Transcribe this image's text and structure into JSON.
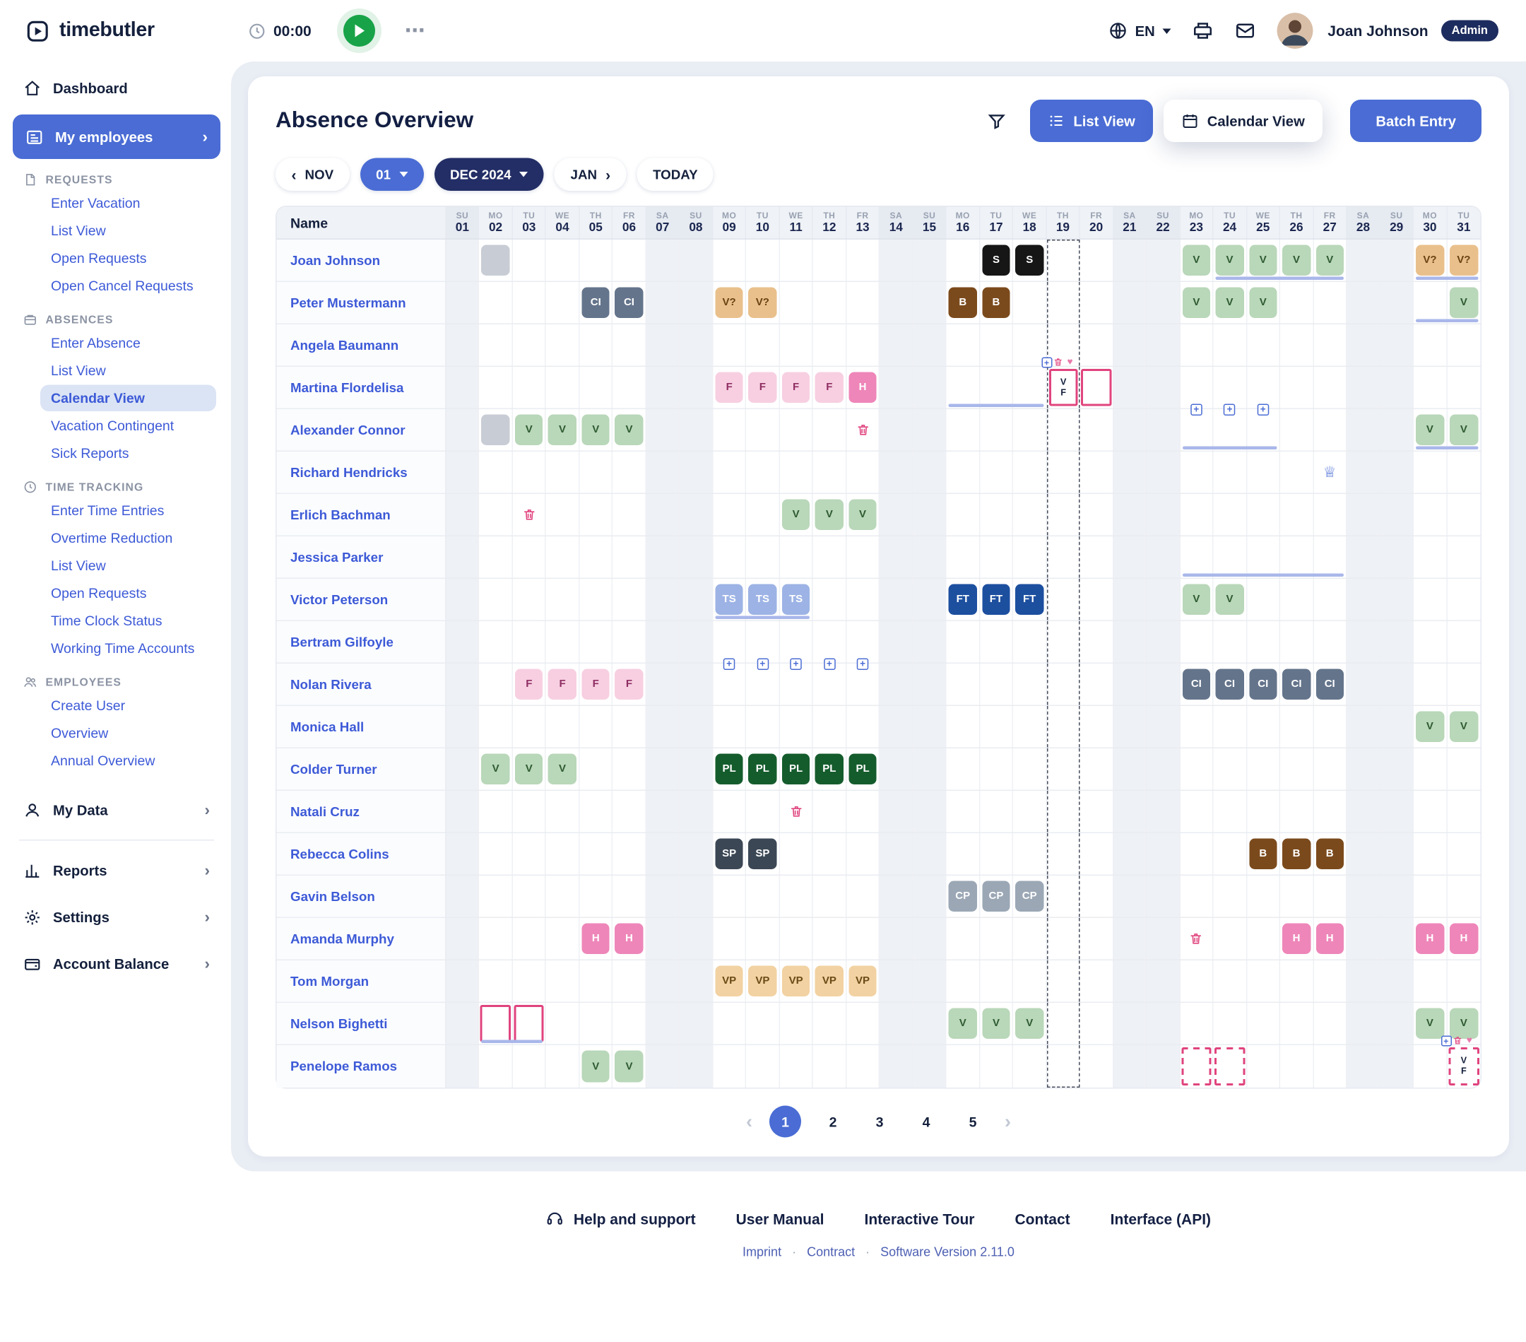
{
  "topbar": {
    "brand": "timebutler",
    "timer": "00:00",
    "ellipsis": "⋯",
    "language": "EN",
    "user_name": "Joan Johnson",
    "user_role": "Admin"
  },
  "sidebar": {
    "dashboard": "Dashboard",
    "my_employees": "My employees",
    "sections": [
      {
        "label": "REQUESTS",
        "items": [
          "Enter Vacation",
          "List View",
          "Open Requests",
          "Open Cancel Requests"
        ]
      },
      {
        "label": "ABSENCES",
        "items": [
          "Enter Absence",
          "List View",
          "Calendar View",
          "Vacation Contingent",
          "Sick Reports"
        ]
      },
      {
        "label": "TIME TRACKING",
        "items": [
          "Enter Time Entries",
          "Overtime Reduction",
          "List View",
          "Open Requests",
          "Time Clock Status",
          "Working Time Accounts"
        ]
      },
      {
        "label": "EMPLOYEES",
        "items": [
          "Create User",
          "Overview",
          "Annual Overview"
        ]
      }
    ],
    "active_item": "Calendar View",
    "bottom_items": [
      "My Data",
      "Reports",
      "Settings",
      "Account Balance"
    ]
  },
  "main": {
    "title": "Absence Overview",
    "view_buttons": {
      "list": "List View",
      "calendar": "Calendar View",
      "batch": "Batch Entry"
    },
    "date_nav": {
      "prev": "NOV",
      "day": "01",
      "month": "DEC 2024",
      "next": "JAN",
      "today": "TODAY"
    },
    "grid": {
      "name_header": "Name",
      "selected_day": 19,
      "palette": {
        "v": {
          "bg": "#b9d7b9",
          "fg": "#2f5b31"
        },
        "vq": {
          "bg": "#e9c08c",
          "fg": "#6a4314"
        },
        "s": {
          "bg": "#161616",
          "fg": "#ffffff"
        },
        "ci": {
          "bg": "#64748b",
          "fg": "#ffffff"
        },
        "b": {
          "bg": "#7b4a1c",
          "fg": "#ffffff"
        },
        "f": {
          "bg": "#f7cfe1",
          "fg": "#8f2d62"
        },
        "h": {
          "bg": "#ee86b9",
          "fg": "#ffffff"
        },
        "ts": {
          "bg": "#9db3e5",
          "fg": "#ffffff"
        },
        "ft": {
          "bg": "#1d4f9f",
          "fg": "#ffffff"
        },
        "pl": {
          "bg": "#155c2d",
          "fg": "#ffffff"
        },
        "sp": {
          "bg": "#3b4754",
          "fg": "#ffffff"
        },
        "cp": {
          "bg": "#9ba7b5",
          "fg": "#ffffff"
        },
        "vp": {
          "bg": "#f2d2a2",
          "fg": "#6a4a15"
        },
        "block": {
          "bg": "#c8ccd5",
          "fg": "#c8ccd5"
        }
      },
      "days": [
        {
          "dow": "SU",
          "num": "01"
        },
        {
          "dow": "MO",
          "num": "02"
        },
        {
          "dow": "TU",
          "num": "03"
        },
        {
          "dow": "WE",
          "num": "04"
        },
        {
          "dow": "TH",
          "num": "05"
        },
        {
          "dow": "FR",
          "num": "06"
        },
        {
          "dow": "SA",
          "num": "07"
        },
        {
          "dow": "SU",
          "num": "08"
        },
        {
          "dow": "MO",
          "num": "09"
        },
        {
          "dow": "TU",
          "num": "10"
        },
        {
          "dow": "WE",
          "num": "11"
        },
        {
          "dow": "TH",
          "num": "12"
        },
        {
          "dow": "FR",
          "num": "13"
        },
        {
          "dow": "SA",
          "num": "14"
        },
        {
          "dow": "SU",
          "num": "15"
        },
        {
          "dow": "MO",
          "num": "16"
        },
        {
          "dow": "TU",
          "num": "17"
        },
        {
          "dow": "WE",
          "num": "18"
        },
        {
          "dow": "TH",
          "num": "19"
        },
        {
          "dow": "FR",
          "num": "20"
        },
        {
          "dow": "SA",
          "num": "21"
        },
        {
          "dow": "SU",
          "num": "22"
        },
        {
          "dow": "MO",
          "num": "23"
        },
        {
          "dow": "TU",
          "num": "24"
        },
        {
          "dow": "WE",
          "num": "25"
        },
        {
          "dow": "TH",
          "num": "26"
        },
        {
          "dow": "FR",
          "num": "27"
        },
        {
          "dow": "SA",
          "num": "28"
        },
        {
          "dow": "SU",
          "num": "29"
        },
        {
          "dow": "MO",
          "num": "30"
        },
        {
          "dow": "TU",
          "num": "31"
        }
      ],
      "rows": [
        {
          "name": "Joan Johnson",
          "cells": [
            {
              "d": 2,
              "t": "block"
            },
            {
              "d": 17,
              "t": "s",
              "c": "S"
            },
            {
              "d": 18,
              "t": "s",
              "c": "S"
            },
            {
              "d": 23,
              "t": "v",
              "c": "V"
            },
            {
              "d": 24,
              "t": "v",
              "c": "V"
            },
            {
              "d": 25,
              "t": "v",
              "c": "V"
            },
            {
              "d": 26,
              "t": "v",
              "c": "V"
            },
            {
              "d": 27,
              "t": "v",
              "c": "V"
            },
            {
              "d": 30,
              "t": "vq",
              "c": "V?"
            },
            {
              "d": 31,
              "t": "vq",
              "c": "V?"
            }
          ],
          "bars": [
            [
              24,
              27
            ],
            [
              30,
              31
            ]
          ]
        },
        {
          "name": "Peter Mustermann",
          "cells": [
            {
              "d": 5,
              "t": "ci",
              "c": "CI"
            },
            {
              "d": 6,
              "t": "ci",
              "c": "CI"
            },
            {
              "d": 9,
              "t": "vq",
              "c": "V?"
            },
            {
              "d": 10,
              "t": "vq",
              "c": "V?"
            },
            {
              "d": 16,
              "t": "b",
              "c": "B"
            },
            {
              "d": 17,
              "t": "b",
              "c": "B"
            },
            {
              "d": 23,
              "t": "v",
              "c": "V"
            },
            {
              "d": 24,
              "t": "v",
              "c": "V"
            },
            {
              "d": 25,
              "t": "v",
              "c": "V"
            },
            {
              "d": 31,
              "t": "v",
              "c": "V"
            }
          ],
          "bars": [
            [
              30,
              31
            ]
          ]
        },
        {
          "name": "Angela Baumann",
          "cells": [],
          "bars": []
        },
        {
          "name": "Martina Flordelisa",
          "cells": [
            {
              "d": 9,
              "t": "f",
              "c": "F"
            },
            {
              "d": 10,
              "t": "f",
              "c": "F"
            },
            {
              "d": 11,
              "t": "f",
              "c": "F"
            },
            {
              "d": 12,
              "t": "f",
              "c": "F"
            },
            {
              "d": 13,
              "t": "h",
              "c": "H"
            },
            {
              "d": 19,
              "t": "vf",
              "c": "V F"
            },
            {
              "d": 20,
              "t": "sel"
            }
          ],
          "bars": [
            [
              16,
              18
            ]
          ]
        },
        {
          "name": "Alexander Connor",
          "cells": [
            {
              "d": 2,
              "t": "block"
            },
            {
              "d": 3,
              "t": "v",
              "c": "V"
            },
            {
              "d": 4,
              "t": "v",
              "c": "V"
            },
            {
              "d": 5,
              "t": "v",
              "c": "V"
            },
            {
              "d": 6,
              "t": "v",
              "c": "V"
            },
            {
              "d": 13,
              "t": "trash"
            },
            {
              "d": 23,
              "t": "plus"
            },
            {
              "d": 24,
              "t": "plus"
            },
            {
              "d": 25,
              "t": "plus"
            },
            {
              "d": 30,
              "t": "v",
              "c": "V"
            },
            {
              "d": 31,
              "t": "v",
              "c": "V"
            }
          ],
          "bars": [
            [
              23,
              25
            ],
            [
              30,
              31
            ]
          ]
        },
        {
          "name": "Richard Hendricks",
          "cells": [
            {
              "d": 27,
              "t": "crown"
            }
          ],
          "bars": []
        },
        {
          "name": "Erlich Bachman",
          "cells": [
            {
              "d": 3,
              "t": "trash"
            },
            {
              "d": 11,
              "t": "v",
              "c": "V"
            },
            {
              "d": 12,
              "t": "v",
              "c": "V"
            },
            {
              "d": 13,
              "t": "v",
              "c": "V"
            }
          ],
          "bars": []
        },
        {
          "name": "Jessica Parker",
          "cells": [],
          "bars": [
            [
              23,
              27
            ]
          ]
        },
        {
          "name": "Victor Peterson",
          "cells": [
            {
              "d": 9,
              "t": "ts",
              "c": "TS"
            },
            {
              "d": 10,
              "t": "ts",
              "c": "TS"
            },
            {
              "d": 11,
              "t": "ts",
              "c": "TS"
            },
            {
              "d": 16,
              "t": "ft",
              "c": "FT"
            },
            {
              "d": 17,
              "t": "ft",
              "c": "FT"
            },
            {
              "d": 18,
              "t": "ft",
              "c": "FT"
            },
            {
              "d": 23,
              "t": "v",
              "c": "V"
            },
            {
              "d": 24,
              "t": "v",
              "c": "V"
            }
          ],
          "bars": [
            [
              9,
              11
            ]
          ]
        },
        {
          "name": "Bertram Gilfoyle",
          "cells": [],
          "bars": []
        },
        {
          "name": "Nolan Rivera",
          "cells": [
            {
              "d": 3,
              "t": "f",
              "c": "F"
            },
            {
              "d": 4,
              "t": "f",
              "c": "F"
            },
            {
              "d": 5,
              "t": "f",
              "c": "F"
            },
            {
              "d": 6,
              "t": "f",
              "c": "F"
            },
            {
              "d": 9,
              "t": "plus"
            },
            {
              "d": 10,
              "t": "plus"
            },
            {
              "d": 11,
              "t": "plus"
            },
            {
              "d": 12,
              "t": "plus"
            },
            {
              "d": 13,
              "t": "plus"
            },
            {
              "d": 23,
              "t": "ci",
              "c": "CI"
            },
            {
              "d": 24,
              "t": "ci",
              "c": "CI"
            },
            {
              "d": 25,
              "t": "ci",
              "c": "CI"
            },
            {
              "d": 26,
              "t": "ci",
              "c": "CI"
            },
            {
              "d": 27,
              "t": "ci",
              "c": "CI"
            }
          ],
          "bars": []
        },
        {
          "name": "Monica Hall",
          "cells": [
            {
              "d": 30,
              "t": "v",
              "c": "V"
            },
            {
              "d": 31,
              "t": "v",
              "c": "V"
            }
          ],
          "bars": []
        },
        {
          "name": "Colder Turner",
          "cells": [
            {
              "d": 2,
              "t": "v",
              "c": "V"
            },
            {
              "d": 3,
              "t": "v",
              "c": "V"
            },
            {
              "d": 4,
              "t": "v",
              "c": "V"
            },
            {
              "d": 9,
              "t": "pl",
              "c": "PL"
            },
            {
              "d": 10,
              "t": "pl",
              "c": "PL"
            },
            {
              "d": 11,
              "t": "pl",
              "c": "PL"
            },
            {
              "d": 12,
              "t": "pl",
              "c": "PL"
            },
            {
              "d": 13,
              "t": "pl",
              "c": "PL"
            }
          ],
          "bars": []
        },
        {
          "name": "Natali Cruz",
          "cells": [
            {
              "d": 11,
              "t": "trash"
            }
          ],
          "bars": []
        },
        {
          "name": "Rebecca Colins",
          "cells": [
            {
              "d": 9,
              "t": "sp",
              "c": "SP"
            },
            {
              "d": 10,
              "t": "sp",
              "c": "SP"
            },
            {
              "d": 25,
              "t": "b",
              "c": "B"
            },
            {
              "d": 26,
              "t": "b",
              "c": "B"
            },
            {
              "d": 27,
              "t": "b",
              "c": "B"
            }
          ],
          "bars": []
        },
        {
          "name": "Gavin Belson",
          "cells": [
            {
              "d": 16,
              "t": "cp",
              "c": "CP"
            },
            {
              "d": 17,
              "t": "cp",
              "c": "CP"
            },
            {
              "d": 18,
              "t": "cp",
              "c": "CP"
            }
          ],
          "bars": []
        },
        {
          "name": "Amanda Murphy",
          "cells": [
            {
              "d": 5,
              "t": "h",
              "c": "H"
            },
            {
              "d": 6,
              "t": "h",
              "c": "H"
            },
            {
              "d": 23,
              "t": "trash"
            },
            {
              "d": 26,
              "t": "h",
              "c": "H"
            },
            {
              "d": 27,
              "t": "h",
              "c": "H"
            },
            {
              "d": 30,
              "t": "h",
              "c": "H"
            },
            {
              "d": 31,
              "t": "h",
              "c": "H"
            }
          ],
          "bars": []
        },
        {
          "name": "Tom Morgan",
          "cells": [
            {
              "d": 9,
              "t": "vp",
              "c": "VP"
            },
            {
              "d": 10,
              "t": "vp",
              "c": "VP"
            },
            {
              "d": 11,
              "t": "vp",
              "c": "VP"
            },
            {
              "d": 12,
              "t": "vp",
              "c": "VP"
            },
            {
              "d": 13,
              "t": "vp",
              "c": "VP"
            }
          ],
          "bars": []
        },
        {
          "name": "Nelson Bighetti",
          "cells": [
            {
              "d": 2,
              "t": "outline"
            },
            {
              "d": 3,
              "t": "outline"
            },
            {
              "d": 16,
              "t": "v",
              "c": "V"
            },
            {
              "d": 17,
              "t": "v",
              "c": "V"
            },
            {
              "d": 18,
              "t": "v",
              "c": "V"
            },
            {
              "d": 30,
              "t": "v",
              "c": "V"
            },
            {
              "d": 31,
              "t": "v",
              "c": "V"
            }
          ],
          "bars": [
            [
              2,
              3
            ]
          ]
        },
        {
          "name": "Penelope Ramos",
          "cells": [
            {
              "d": 5,
              "t": "v",
              "c": "V"
            },
            {
              "d": 6,
              "t": "v",
              "c": "V"
            },
            {
              "d": 23,
              "t": "outline-dashed"
            },
            {
              "d": 24,
              "t": "outline-dashed"
            },
            {
              "d": 31,
              "t": "vf-dashed",
              "c": "V F"
            }
          ],
          "bars": []
        }
      ]
    },
    "pagination": {
      "prev_icon": "‹",
      "pages": [
        "1",
        "2",
        "3",
        "4",
        "5"
      ],
      "active": "1",
      "next_icon": "›"
    }
  },
  "footer": {
    "links": [
      "Help and support",
      "User Manual",
      "Interactive Tour",
      "Contact",
      "Interface (API)"
    ],
    "meta": [
      "Imprint",
      "Contract",
      "Software Version 2.11.0"
    ]
  },
  "colors": {
    "accent_blue": "#4a6cd4",
    "dark_navy": "#232e66",
    "link_blue": "#3d5ad7",
    "selection_pink": "#e0447e",
    "period_bar": "#a9b7ea"
  }
}
